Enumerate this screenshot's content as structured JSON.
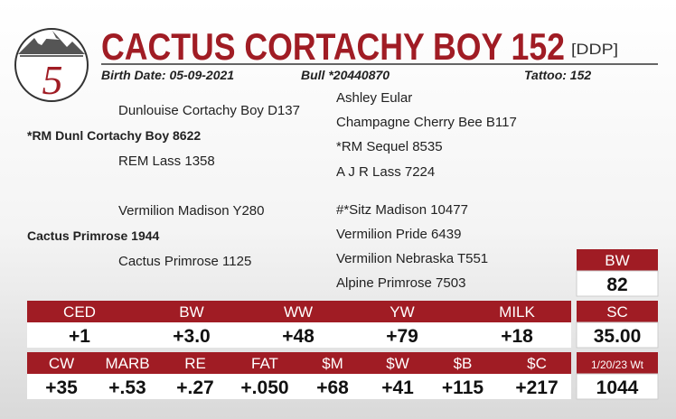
{
  "logo": {
    "number": "5"
  },
  "header": {
    "title": "CACTUS CORTACHY BOY 152",
    "tag": "[DDP]",
    "birth_date": "Birth Date: 05-09-2021",
    "registration": "Bull *20440870",
    "tattoo": "Tattoo: 152"
  },
  "pedigree": {
    "left": [
      "Dunlouise Cortachy Boy D137",
      "*RM Dunl Cortachy Boy 8622",
      "REM Lass 1358",
      "Vermilion Madison Y280",
      "Cactus Primrose 1944",
      "Cactus Primrose 1125"
    ],
    "right": [
      "Ashley Eular",
      "Champagne Cherry Bee B117",
      "*RM Sequel 8535",
      "A J R Lass 7224",
      "#*Sitz Madison 10477",
      "Vermilion Pride 6439",
      "Vermilion Nebraska T551",
      "Alpine Primrose 7503"
    ]
  },
  "epd": {
    "row1": {
      "headers": [
        "CED",
        "BW",
        "WW",
        "YW",
        "MILK"
      ],
      "values": [
        "+1",
        "+3.0",
        "+48",
        "+79",
        "+18"
      ]
    },
    "row2": {
      "headers": [
        "CW",
        "MARB",
        "RE",
        "FAT",
        "$M",
        "$W",
        "$B",
        "$C"
      ],
      "values": [
        "+35",
        "+.53",
        "+.27",
        "+.050",
        "+68",
        "+41",
        "+115",
        "+217"
      ]
    }
  },
  "side": [
    {
      "label": "BW",
      "value": "82"
    },
    {
      "label": "SC",
      "value": "35.00"
    },
    {
      "label": "1/20/23 Wt",
      "value": "1044"
    }
  ]
}
